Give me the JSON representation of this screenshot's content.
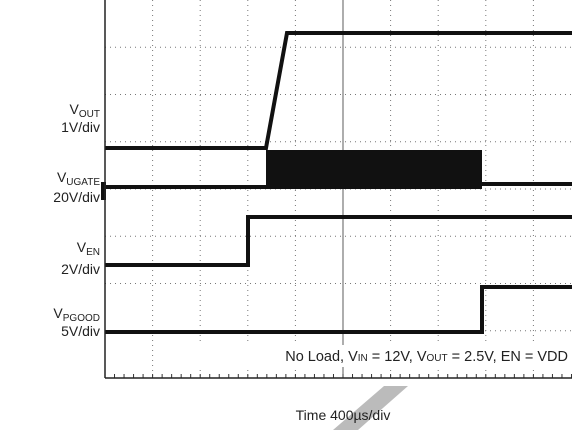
{
  "channels": [
    {
      "symbol": "V",
      "subscript": "OUT",
      "scale": "1V/div"
    },
    {
      "symbol": "V",
      "subscript": "UGATE",
      "scale": "20V/div"
    },
    {
      "symbol": "V",
      "subscript": "EN",
      "scale": "2V/div"
    },
    {
      "symbol": "V",
      "subscript": "PGOOD",
      "scale": "5V/div"
    }
  ],
  "annotation": {
    "parts": [
      "No Load, V",
      "IN",
      " = 12V, V",
      "OUT",
      " = 2.5V, EN = VDD"
    ]
  },
  "x_axis_label": "Time 400µs/div"
}
